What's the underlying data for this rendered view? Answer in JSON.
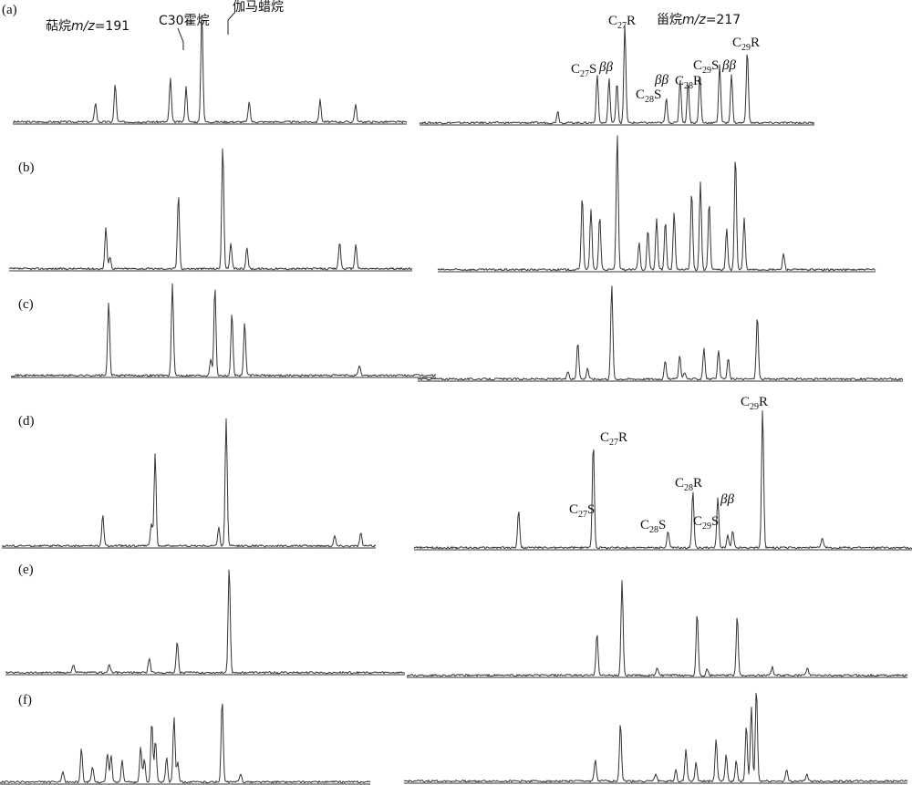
{
  "figure": {
    "panels": [
      {
        "label": "(a)",
        "left_title": {
          "prefix": "萜烷",
          "italic": "m/z",
          "suffix": "=191"
        },
        "right_title": {
          "prefix": "甾烷",
          "italic": "m/z",
          "suffix": "=217"
        }
      },
      {
        "label": "(b)"
      },
      {
        "label": "(c)"
      },
      {
        "label": "(d)"
      },
      {
        "label": "(e)"
      },
      {
        "label": "(f)"
      }
    ],
    "annotations": {
      "c30_hopane": "C30霍烷",
      "gammacerane": "伽马蜡烷"
    },
    "peaks_a": [
      {
        "base": "C",
        "sub": "27",
        "suffix": "R"
      },
      {
        "base": "C",
        "sub": "27",
        "suffix": "S"
      },
      {
        "base": "",
        "sub": "",
        "suffix": "ββ"
      },
      {
        "base": "C",
        "sub": "28",
        "suffix": "S"
      },
      {
        "base": "",
        "sub": "",
        "suffix": "ββ"
      },
      {
        "base": "C",
        "sub": "28",
        "suffix": "R"
      },
      {
        "base": "C",
        "sub": "29",
        "suffix": "S"
      },
      {
        "base": "",
        "sub": "",
        "suffix": "ββ"
      },
      {
        "base": "C",
        "sub": "29",
        "suffix": "R"
      }
    ],
    "peaks_d": [
      {
        "base": "C",
        "sub": "29",
        "suffix": "R"
      },
      {
        "base": "C",
        "sub": "27",
        "suffix": "R"
      },
      {
        "base": "C",
        "sub": "28",
        "suffix": "R"
      },
      {
        "base": "",
        "sub": "",
        "suffix": "ββ"
      },
      {
        "base": "C",
        "sub": "27",
        "suffix": "S"
      },
      {
        "base": "C",
        "sub": "28",
        "suffix": "S"
      },
      {
        "base": "C",
        "sub": "29",
        "suffix": "S"
      }
    ]
  },
  "chart_data": [
    {
      "type": "line",
      "name": "a-terpane",
      "peaks": [
        [
          0.26,
          0.35
        ],
        [
          0.4,
          0.4
        ],
        [
          0.48,
          1.0
        ],
        [
          0.6,
          0.18
        ],
        [
          0.87,
          0.16
        ],
        [
          0.78,
          0.2
        ],
        [
          0.44,
          0.32
        ],
        [
          0.21,
          0.18
        ]
      ]
    },
    {
      "type": "line",
      "name": "a-sterane",
      "peaks": [
        [
          0.52,
          1.0
        ],
        [
          0.45,
          0.5
        ],
        [
          0.48,
          0.45
        ],
        [
          0.625,
          0.25
        ],
        [
          0.66,
          0.45
        ],
        [
          0.68,
          0.42
        ],
        [
          0.71,
          0.5
        ],
        [
          0.76,
          0.6
        ],
        [
          0.79,
          0.5
        ],
        [
          0.83,
          0.75
        ],
        [
          0.5,
          0.42
        ],
        [
          0.35,
          0.12
        ]
      ]
    },
    {
      "type": "line",
      "name": "b-terpane",
      "peaks": [
        [
          0.24,
          0.33
        ],
        [
          0.42,
          0.6
        ],
        [
          0.53,
          1.0
        ],
        [
          0.55,
          0.2
        ],
        [
          0.82,
          0.22
        ],
        [
          0.86,
          0.2
        ],
        [
          0.59,
          0.17
        ],
        [
          0.25,
          0.1
        ]
      ]
    },
    {
      "type": "line",
      "name": "b-sterane",
      "peaks": [
        [
          0.41,
          1.0
        ],
        [
          0.33,
          0.55
        ],
        [
          0.35,
          0.45
        ],
        [
          0.37,
          0.4
        ],
        [
          0.48,
          0.3
        ],
        [
          0.5,
          0.38
        ],
        [
          0.52,
          0.36
        ],
        [
          0.54,
          0.42
        ],
        [
          0.58,
          0.58
        ],
        [
          0.6,
          0.65
        ],
        [
          0.62,
          0.5
        ],
        [
          0.68,
          0.85
        ],
        [
          0.66,
          0.3
        ],
        [
          0.7,
          0.38
        ],
        [
          0.46,
          0.2
        ],
        [
          0.79,
          0.12
        ]
      ]
    },
    {
      "type": "line",
      "name": "c-terpane",
      "peaks": [
        [
          0.23,
          0.8
        ],
        [
          0.38,
          1.0
        ],
        [
          0.48,
          0.97
        ],
        [
          0.52,
          0.68
        ],
        [
          0.55,
          0.58
        ],
        [
          0.47,
          0.18
        ],
        [
          0.82,
          0.1
        ]
      ]
    },
    {
      "type": "line",
      "name": "c-sterane",
      "peaks": [
        [
          0.4,
          1.0
        ],
        [
          0.33,
          0.4
        ],
        [
          0.31,
          0.08
        ],
        [
          0.35,
          0.12
        ],
        [
          0.51,
          0.2
        ],
        [
          0.54,
          0.25
        ],
        [
          0.59,
          0.33
        ],
        [
          0.62,
          0.3
        ],
        [
          0.64,
          0.22
        ],
        [
          0.7,
          0.68
        ],
        [
          0.55,
          0.08
        ]
      ]
    },
    {
      "type": "line",
      "name": "d-terpane",
      "peaks": [
        [
          0.27,
          0.24
        ],
        [
          0.41,
          0.72
        ],
        [
          0.6,
          1.0
        ],
        [
          0.4,
          0.18
        ],
        [
          0.58,
          0.15
        ],
        [
          0.96,
          0.1
        ],
        [
          0.89,
          0.08
        ]
      ]
    },
    {
      "type": "line",
      "name": "d-sterane",
      "peaks": [
        [
          0.7,
          1.0
        ],
        [
          0.36,
          0.76
        ],
        [
          0.56,
          0.41
        ],
        [
          0.64,
          0.12
        ],
        [
          0.63,
          0.09
        ],
        [
          0.61,
          0.36
        ],
        [
          0.21,
          0.27
        ],
        [
          0.51,
          0.12
        ],
        [
          0.82,
          0.07
        ]
      ]
    },
    {
      "type": "line",
      "name": "e-terpane",
      "peaks": [
        [
          0.56,
          1.0
        ],
        [
          0.43,
          0.3
        ],
        [
          0.17,
          0.08
        ],
        [
          0.36,
          0.14
        ],
        [
          0.26,
          0.08
        ]
      ]
    },
    {
      "type": "line",
      "name": "e-sterane",
      "peaks": [
        [
          0.43,
          1.0
        ],
        [
          0.38,
          0.45
        ],
        [
          0.58,
          0.66
        ],
        [
          0.66,
          0.62
        ],
        [
          0.5,
          0.08
        ],
        [
          0.6,
          0.07
        ],
        [
          0.73,
          0.09
        ],
        [
          0.8,
          0.08
        ]
      ]
    },
    {
      "type": "line",
      "name": "f-terpane",
      "peaks": [
        [
          0.6,
          0.98
        ],
        [
          0.47,
          0.78
        ],
        [
          0.41,
          0.72
        ],
        [
          0.42,
          0.5
        ],
        [
          0.38,
          0.42
        ],
        [
          0.45,
          0.3
        ],
        [
          0.39,
          0.28
        ],
        [
          0.33,
          0.25
        ],
        [
          0.29,
          0.35
        ],
        [
          0.22,
          0.4
        ],
        [
          0.48,
          0.25
        ],
        [
          0.25,
          0.18
        ],
        [
          0.3,
          0.32
        ],
        [
          0.17,
          0.12
        ],
        [
          0.65,
          0.1
        ]
      ]
    },
    {
      "type": "line",
      "name": "f-sterane",
      "peaks": [
        [
          0.7,
          1.0
        ],
        [
          0.69,
          0.8
        ],
        [
          0.68,
          0.6
        ],
        [
          0.43,
          0.63
        ],
        [
          0.38,
          0.23
        ],
        [
          0.56,
          0.35
        ],
        [
          0.62,
          0.45
        ],
        [
          0.64,
          0.28
        ],
        [
          0.58,
          0.2
        ],
        [
          0.66,
          0.22
        ],
        [
          0.5,
          0.08
        ],
        [
          0.54,
          0.12
        ],
        [
          0.76,
          0.12
        ],
        [
          0.8,
          0.07
        ]
      ]
    }
  ]
}
